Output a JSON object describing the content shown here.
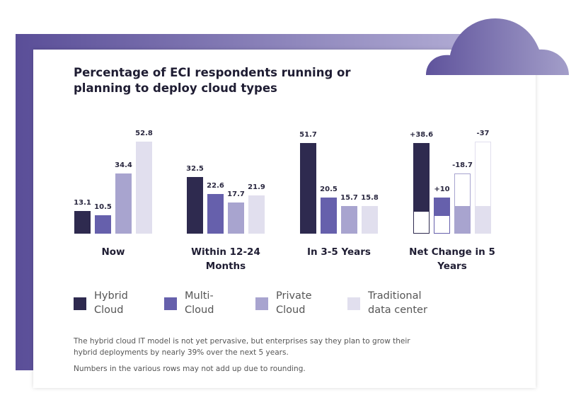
{
  "chart_data": {
    "type": "bar",
    "title": "Percentage of ECI respondents running or planning to deploy cloud types",
    "categories": [
      "Now",
      "Within 12-24 Months",
      "In 3-5 Years",
      "Net Change in 5 Years"
    ],
    "series": [
      {
        "name": "Hybrid Cloud",
        "color": "#2e2a4f",
        "values": [
          13.1,
          32.5,
          51.7,
          38.6
        ],
        "value_labels": [
          "13.1",
          "32.5",
          "51.7",
          "+38.6"
        ]
      },
      {
        "name": "Multi-Cloud",
        "color": "#6660ac",
        "values": [
          10.5,
          22.6,
          20.5,
          10
        ],
        "value_labels": [
          "10.5",
          "22.6",
          "20.5",
          "+10"
        ]
      },
      {
        "name": "Private Cloud",
        "color": "#a8a4cf",
        "values": [
          34.4,
          17.7,
          15.7,
          -18.7
        ],
        "value_labels": [
          "34.4",
          "17.7",
          "15.7",
          "-18.7"
        ]
      },
      {
        "name": "Traditional data center",
        "color": "#e1dfee",
        "values": [
          52.8,
          21.9,
          15.8,
          -37
        ],
        "value_labels": [
          "52.8",
          "21.9",
          "15.8",
          "-37"
        ]
      }
    ],
    "notes": [
      "The hybrid cloud IT model is not yet pervasive, but enterprises say they plan to grow their hybrid deployments by nearly 39% over the next 5 years.",
      "Numbers in the various rows may not add up due to rounding."
    ]
  }
}
